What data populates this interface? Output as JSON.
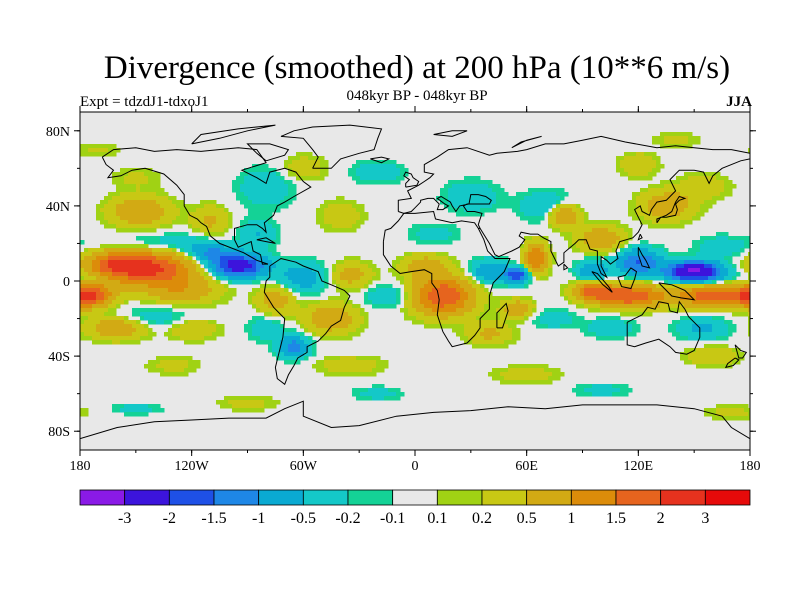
{
  "title": "Divergence (smoothed) at 200 hPa (10**6 m/s)",
  "left_label": "Expt = tdzdJ1-tdxoJ1",
  "center_label": "048kyr BP - 048kyr BP",
  "right_label": "JJA",
  "map": {
    "lat_ticks": [
      {
        "value": 80,
        "label": "80N"
      },
      {
        "value": 40,
        "label": "40N"
      },
      {
        "value": 0,
        "label": "0"
      },
      {
        "value": -40,
        "label": "40S"
      },
      {
        "value": -80,
        "label": "80S"
      }
    ],
    "lon_ticks": [
      {
        "value": -180,
        "label": "180"
      },
      {
        "value": -120,
        "label": "120W"
      },
      {
        "value": -60,
        "label": "60W"
      },
      {
        "value": 0,
        "label": "0"
      },
      {
        "value": 60,
        "label": "60E"
      },
      {
        "value": 120,
        "label": "120E"
      },
      {
        "value": 180,
        "label": "180"
      }
    ],
    "background_color": "#e8e8e8",
    "coastline_color": "#000000"
  },
  "colorbar": {
    "colors": [
      "#8a1ae6",
      "#3c14dc",
      "#1e50e6",
      "#1e87e6",
      "#0aaad2",
      "#14c8c8",
      "#14d296",
      "#e8e8e8",
      "#a0d214",
      "#c8c814",
      "#d2aa14",
      "#dc8c0a",
      "#e6641e",
      "#e6321e",
      "#e60a0a"
    ],
    "labels": [
      "-3",
      "-2",
      "-1.5",
      "-1",
      "-0.5",
      "-0.2",
      "-0.1",
      "0.1",
      "0.2",
      "0.5",
      "1",
      "1.5",
      "2",
      "3"
    ]
  },
  "field_blobs": [
    {
      "lon": -145,
      "lat": 7,
      "rlon": 25,
      "rlat": 9,
      "v": 2.2
    },
    {
      "lon": -163,
      "lat": 8,
      "rlon": 14,
      "rlat": 8,
      "v": 1.0
    },
    {
      "lon": -175,
      "lat": -8,
      "rlon": 12,
      "rlat": 6,
      "v": 2.0
    },
    {
      "lon": -125,
      "lat": -5,
      "rlon": 20,
      "rlat": 8,
      "v": 0.8
    },
    {
      "lon": -148,
      "lat": 37,
      "rlon": 16,
      "rlat": 8,
      "v": 1.0
    },
    {
      "lon": -110,
      "lat": 32,
      "rlon": 10,
      "rlat": 8,
      "v": 0.6
    },
    {
      "lon": -150,
      "lat": 55,
      "rlon": 14,
      "rlat": 6,
      "v": 0.25
    },
    {
      "lon": -95,
      "lat": 8,
      "rlon": 14,
      "rlat": 6,
      "v": -2.5
    },
    {
      "lon": -110,
      "lat": 15,
      "rlon": 12,
      "rlat": 5,
      "v": -1.0
    },
    {
      "lon": -125,
      "lat": 20,
      "rlon": 18,
      "rlat": 6,
      "v": -0.4
    },
    {
      "lon": -155,
      "lat": 20,
      "rlon": 22,
      "rlat": 5,
      "v": -0.3
    },
    {
      "lon": -170,
      "lat": 2,
      "rlon": 18,
      "rlat": 4,
      "v": -0.5
    },
    {
      "lon": -138,
      "lat": -20,
      "rlon": 24,
      "rlat": 7,
      "v": -0.45
    },
    {
      "lon": -120,
      "lat": -25,
      "rlon": 14,
      "rlat": 6,
      "v": 0.6
    },
    {
      "lon": -160,
      "lat": -25,
      "rlon": 16,
      "rlat": 6,
      "v": 1.0
    },
    {
      "lon": -80,
      "lat": 50,
      "rlon": 14,
      "rlat": 10,
      "v": -0.5
    },
    {
      "lon": -60,
      "lat": 60,
      "rlon": 12,
      "rlat": 7,
      "v": 0.4
    },
    {
      "lon": -85,
      "lat": 25,
      "rlon": 10,
      "rlat": 8,
      "v": -0.5
    },
    {
      "lon": -40,
      "lat": 35,
      "rlon": 12,
      "rlat": 8,
      "v": 0.4
    },
    {
      "lon": -20,
      "lat": 58,
      "rlon": 14,
      "rlat": 6,
      "v": -0.4
    },
    {
      "lon": -60,
      "lat": 2,
      "rlon": 14,
      "rlat": 8,
      "v": -0.8
    },
    {
      "lon": -75,
      "lat": -10,
      "rlon": 10,
      "rlat": 8,
      "v": 0.8
    },
    {
      "lon": -35,
      "lat": 3,
      "rlon": 12,
      "rlat": 7,
      "v": 0.7
    },
    {
      "lon": -15,
      "lat": -8,
      "rlon": 12,
      "rlat": 6,
      "v": -0.5
    },
    {
      "lon": -45,
      "lat": -20,
      "rlon": 14,
      "rlat": 8,
      "v": 0.9
    },
    {
      "lon": -65,
      "lat": -35,
      "rlon": 8,
      "rlat": 6,
      "v": -1.2
    },
    {
      "lon": -80,
      "lat": -25,
      "rlon": 10,
      "rlat": 7,
      "v": -0.4
    },
    {
      "lon": -35,
      "lat": -45,
      "rlon": 18,
      "rlat": 5,
      "v": 0.4
    },
    {
      "lon": -130,
      "lat": -45,
      "rlon": 14,
      "rlat": 5,
      "v": 0.3
    },
    {
      "lon": 15,
      "lat": -8,
      "rlon": 16,
      "rlat": 10,
      "v": 2.0
    },
    {
      "lon": 5,
      "lat": 8,
      "rlon": 12,
      "rlat": 6,
      "v": 0.8
    },
    {
      "lon": 40,
      "lat": 5,
      "rlon": 10,
      "rlat": 6,
      "v": -1.0
    },
    {
      "lon": 55,
      "lat": 3,
      "rlon": 6,
      "rlat": 4,
      "v": -2.0
    },
    {
      "lon": 65,
      "lat": 12,
      "rlon": 6,
      "rlat": 8,
      "v": 1.5
    },
    {
      "lon": 10,
      "lat": 25,
      "rlon": 14,
      "rlat": 6,
      "v": -0.3
    },
    {
      "lon": 30,
      "lat": 45,
      "rlon": 14,
      "rlat": 8,
      "v": -0.5
    },
    {
      "lon": 70,
      "lat": 40,
      "rlon": 14,
      "rlat": 8,
      "v": -0.5
    },
    {
      "lon": 80,
      "lat": 35,
      "rlon": 8,
      "rlat": 6,
      "v": 1.2
    },
    {
      "lon": 100,
      "lat": 22,
      "rlon": 12,
      "rlat": 7,
      "v": 1.0
    },
    {
      "lon": 95,
      "lat": 5,
      "rlon": 8,
      "rlat": 6,
      "v": -1.0
    },
    {
      "lon": 120,
      "lat": 10,
      "rlon": 12,
      "rlat": 7,
      "v": -1.5
    },
    {
      "lon": 150,
      "lat": 5,
      "rlon": 14,
      "rlat": 5,
      "v": -3.2
    },
    {
      "lon": 165,
      "lat": 18,
      "rlon": 14,
      "rlat": 6,
      "v": -0.4
    },
    {
      "lon": 135,
      "lat": 40,
      "rlon": 14,
      "rlat": 8,
      "v": 0.9
    },
    {
      "lon": 155,
      "lat": 50,
      "rlon": 14,
      "rlat": 7,
      "v": 0.4
    },
    {
      "lon": 120,
      "lat": 62,
      "rlon": 10,
      "rlat": 6,
      "v": 0.5
    },
    {
      "lon": 115,
      "lat": -8,
      "rlon": 18,
      "rlat": 6,
      "v": 2.0
    },
    {
      "lon": 160,
      "lat": -8,
      "rlon": 20,
      "rlat": 6,
      "v": 1.8
    },
    {
      "lon": 95,
      "lat": -5,
      "rlon": 10,
      "rlat": 5,
      "v": 1.5
    },
    {
      "lon": 105,
      "lat": -25,
      "rlon": 12,
      "rlat": 5,
      "v": -0.5
    },
    {
      "lon": 155,
      "lat": -25,
      "rlon": 14,
      "rlat": 6,
      "v": -0.6
    },
    {
      "lon": 75,
      "lat": -20,
      "rlon": 12,
      "rlat": 5,
      "v": -0.4
    },
    {
      "lon": 40,
      "lat": -28,
      "rlon": 12,
      "rlat": 6,
      "v": 0.6
    },
    {
      "lon": 55,
      "lat": -15,
      "rlon": 8,
      "rlat": 5,
      "v": 0.9
    },
    {
      "lon": 160,
      "lat": -40,
      "rlon": 14,
      "rlat": 5,
      "v": 0.5
    },
    {
      "lon": 60,
      "lat": -50,
      "rlon": 18,
      "rlat": 5,
      "v": 0.35
    },
    {
      "lon": -20,
      "lat": -60,
      "rlon": 14,
      "rlat": 4,
      "v": -0.3
    },
    {
      "lon": 100,
      "lat": -58,
      "rlon": 16,
      "rlat": 4,
      "v": -0.3
    },
    {
      "lon": -90,
      "lat": -65,
      "rlon": 16,
      "rlat": 4,
      "v": 0.3
    },
    {
      "lon": -150,
      "lat": -68,
      "rlon": 14,
      "rlat": 3,
      "v": -0.3
    },
    {
      "lon": 170,
      "lat": -70,
      "rlon": 14,
      "rlat": 4,
      "v": 0.3
    },
    {
      "lon": 140,
      "lat": 75,
      "rlon": 12,
      "rlat": 4,
      "v": 0.3
    },
    {
      "lon": -170,
      "lat": 70,
      "rlon": 12,
      "rlat": 4,
      "v": 0.25
    }
  ]
}
